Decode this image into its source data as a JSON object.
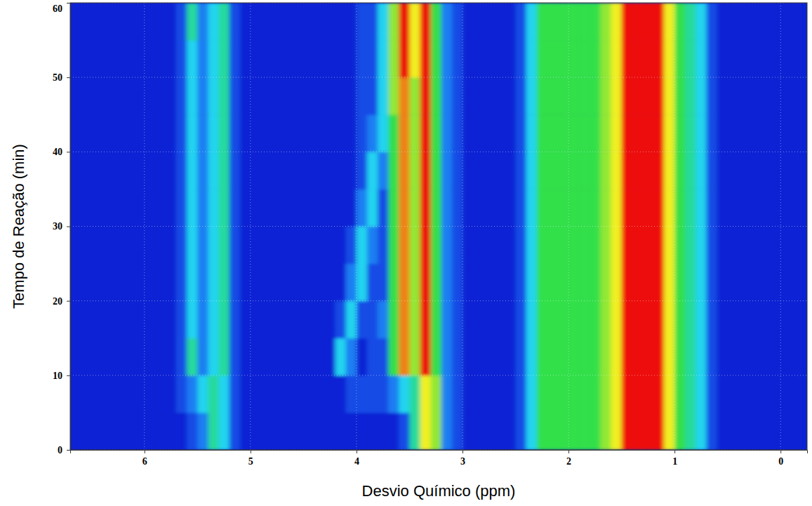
{
  "chart_data": {
    "type": "heatmap",
    "x_label": "Desvio Químico (ppm)",
    "y_label": "Tempo de Reação (min)",
    "xlim": [
      6.7,
      -0.25
    ],
    "ylim": [
      0,
      60
    ],
    "xticks": [
      6,
      5,
      4,
      3,
      2,
      1,
      0
    ],
    "yticks": [
      0,
      10,
      20,
      30,
      40,
      50,
      60
    ],
    "grid": true,
    "x_edges": [
      6.7,
      6.6,
      6.5,
      6.4,
      6.3,
      6.2,
      6.1,
      6.0,
      5.9,
      5.8,
      5.7,
      5.6,
      5.5,
      5.4,
      5.3,
      5.2,
      5.1,
      5.0,
      4.9,
      4.8,
      4.7,
      4.6,
      4.5,
      4.4,
      4.3,
      4.2,
      4.1,
      4.0,
      3.9,
      3.8,
      3.7,
      3.6,
      3.5,
      3.4,
      3.3,
      3.2,
      3.1,
      3.0,
      2.9,
      2.8,
      2.7,
      2.6,
      2.5,
      2.4,
      2.3,
      2.2,
      2.1,
      2.0,
      1.9,
      1.8,
      1.7,
      1.6,
      1.5,
      1.4,
      1.3,
      1.2,
      1.1,
      1.0,
      0.9,
      0.8,
      0.7,
      0.6,
      0.5,
      0.4,
      0.3,
      0.2,
      0.1,
      0.0,
      -0.1,
      -0.2
    ],
    "y_edges": [
      0,
      5,
      10,
      15,
      20,
      25,
      30,
      35,
      40,
      45,
      50,
      55,
      60
    ],
    "cells": [
      [
        0,
        0,
        0,
        0,
        0,
        0,
        0,
        0,
        0,
        0,
        0,
        1,
        2,
        4,
        3,
        1,
        0,
        0,
        0,
        0,
        0,
        0,
        0,
        0,
        0,
        0,
        0,
        0,
        0,
        0,
        0,
        1,
        4,
        7,
        6,
        2,
        1,
        0,
        0,
        0,
        0,
        0,
        1,
        3,
        5,
        5,
        5,
        5,
        5,
        5,
        6,
        7,
        9,
        9,
        9,
        9,
        7,
        5,
        4,
        3,
        1,
        0,
        0,
        0,
        0,
        0,
        0,
        0,
        0
      ],
      [
        0,
        0,
        0,
        0,
        0,
        0,
        0,
        0,
        0,
        0,
        1,
        2,
        3,
        4,
        3,
        1,
        0,
        0,
        0,
        0,
        0,
        0,
        0,
        0,
        0,
        0,
        1,
        1,
        1,
        1,
        2,
        3,
        4,
        7,
        6,
        2,
        1,
        0,
        0,
        0,
        0,
        0,
        1,
        3,
        5,
        5,
        5,
        5,
        5,
        5,
        6,
        7,
        9,
        9,
        9,
        9,
        7,
        5,
        4,
        3,
        1,
        0,
        0,
        0,
        0,
        0,
        0,
        0,
        0
      ],
      [
        0,
        0,
        0,
        0,
        0,
        0,
        0,
        0,
        0,
        0,
        1,
        4,
        2,
        3,
        4,
        1,
        0,
        0,
        0,
        0,
        0,
        0,
        0,
        0,
        0,
        3,
        2,
        0,
        1,
        1,
        5,
        8,
        6,
        9,
        5,
        2,
        1,
        0,
        0,
        0,
        0,
        0,
        1,
        3,
        5,
        5,
        5,
        5,
        5,
        5,
        6,
        7,
        9,
        9,
        9,
        9,
        7,
        5,
        4,
        3,
        1,
        0,
        0,
        0,
        0,
        0,
        0,
        0,
        0
      ],
      [
        0,
        0,
        0,
        0,
        0,
        0,
        0,
        0,
        0,
        0,
        1,
        3,
        2,
        3,
        4,
        1,
        0,
        0,
        0,
        0,
        0,
        0,
        0,
        0,
        0,
        1,
        3,
        1,
        1,
        2,
        5,
        8,
        6,
        9,
        5,
        2,
        1,
        0,
        0,
        0,
        0,
        0,
        1,
        3,
        5,
        5,
        5,
        5,
        5,
        5,
        6,
        7,
        9,
        9,
        9,
        9,
        7,
        5,
        4,
        3,
        1,
        0,
        0,
        0,
        0,
        0,
        0,
        0,
        0
      ],
      [
        0,
        0,
        0,
        0,
        0,
        0,
        0,
        0,
        0,
        0,
        1,
        3,
        2,
        3,
        4,
        1,
        0,
        0,
        0,
        0,
        0,
        0,
        0,
        0,
        0,
        0,
        2,
        3,
        1,
        1,
        5,
        8,
        6,
        9,
        5,
        2,
        1,
        0,
        0,
        0,
        0,
        0,
        1,
        3,
        5,
        5,
        5,
        5,
        5,
        5,
        6,
        7,
        9,
        9,
        9,
        9,
        7,
        5,
        4,
        3,
        1,
        0,
        0,
        0,
        0,
        0,
        0,
        0,
        0
      ],
      [
        0,
        0,
        0,
        0,
        0,
        0,
        0,
        0,
        0,
        0,
        1,
        3,
        2,
        3,
        4,
        1,
        0,
        0,
        0,
        0,
        0,
        0,
        0,
        0,
        0,
        0,
        1,
        3,
        2,
        1,
        5,
        8,
        6,
        9,
        5,
        2,
        1,
        0,
        0,
        0,
        0,
        0,
        1,
        3,
        5,
        5,
        5,
        5,
        5,
        5,
        6,
        7,
        9,
        9,
        9,
        9,
        7,
        5,
        4,
        3,
        1,
        0,
        0,
        0,
        0,
        0,
        0,
        0,
        0
      ],
      [
        0,
        0,
        0,
        0,
        0,
        0,
        0,
        0,
        0,
        0,
        1,
        3,
        2,
        3,
        4,
        1,
        0,
        0,
        0,
        0,
        0,
        0,
        0,
        0,
        0,
        0,
        0,
        2,
        3,
        1,
        5,
        8,
        6,
        9,
        5,
        2,
        1,
        0,
        0,
        0,
        0,
        0,
        1,
        3,
        5,
        5,
        5,
        5,
        5,
        5,
        6,
        7,
        9,
        9,
        9,
        9,
        7,
        5,
        4,
        3,
        1,
        0,
        0,
        0,
        0,
        0,
        0,
        0,
        0
      ],
      [
        0,
        0,
        0,
        0,
        0,
        0,
        0,
        0,
        0,
        0,
        1,
        3,
        2,
        3,
        4,
        1,
        0,
        0,
        0,
        0,
        0,
        0,
        0,
        0,
        0,
        0,
        0,
        1,
        3,
        2,
        5,
        8,
        6,
        9,
        5,
        2,
        1,
        0,
        0,
        0,
        0,
        0,
        1,
        3,
        5,
        5,
        5,
        5,
        5,
        5,
        6,
        7,
        9,
        9,
        9,
        9,
        7,
        5,
        4,
        3,
        1,
        0,
        0,
        0,
        0,
        0,
        0,
        0,
        0
      ],
      [
        0,
        0,
        0,
        0,
        0,
        0,
        0,
        0,
        0,
        0,
        1,
        3,
        2,
        3,
        4,
        1,
        0,
        0,
        0,
        0,
        0,
        0,
        0,
        0,
        0,
        0,
        0,
        1,
        2,
        3,
        5,
        8,
        6,
        9,
        5,
        2,
        1,
        0,
        0,
        0,
        0,
        0,
        1,
        3,
        5,
        5,
        5,
        5,
        5,
        5,
        6,
        7,
        9,
        9,
        9,
        9,
        7,
        5,
        4,
        3,
        1,
        0,
        0,
        0,
        0,
        0,
        0,
        0,
        0
      ],
      [
        0,
        0,
        0,
        0,
        0,
        0,
        0,
        0,
        0,
        0,
        1,
        3,
        2,
        3,
        4,
        1,
        0,
        0,
        0,
        0,
        0,
        0,
        0,
        0,
        0,
        0,
        0,
        1,
        1,
        3,
        6,
        8,
        6,
        9,
        5,
        2,
        1,
        0,
        0,
        0,
        0,
        0,
        1,
        3,
        5,
        5,
        5,
        5,
        5,
        5,
        6,
        7,
        9,
        9,
        9,
        9,
        7,
        5,
        4,
        3,
        1,
        0,
        0,
        0,
        0,
        0,
        0,
        0,
        0
      ],
      [
        0,
        0,
        0,
        0,
        0,
        0,
        0,
        0,
        0,
        0,
        1,
        3,
        2,
        3,
        4,
        1,
        0,
        0,
        0,
        0,
        0,
        0,
        0,
        0,
        0,
        0,
        0,
        1,
        1,
        3,
        6,
        9,
        7,
        9,
        5,
        2,
        1,
        0,
        0,
        0,
        0,
        0,
        1,
        3,
        5,
        5,
        5,
        5,
        5,
        5,
        6,
        7,
        9,
        9,
        9,
        9,
        7,
        5,
        4,
        3,
        1,
        0,
        0,
        0,
        0,
        0,
        0,
        0,
        0
      ],
      [
        0,
        0,
        0,
        0,
        0,
        0,
        0,
        0,
        0,
        0,
        1,
        4,
        2,
        3,
        4,
        1,
        0,
        0,
        0,
        0,
        0,
        0,
        0,
        0,
        0,
        0,
        0,
        1,
        1,
        3,
        6,
        9,
        7,
        9,
        5,
        2,
        1,
        0,
        0,
        0,
        0,
        0,
        1,
        3,
        5,
        5,
        5,
        5,
        5,
        5,
        6,
        7,
        9,
        9,
        9,
        9,
        7,
        5,
        4,
        3,
        1,
        0,
        0,
        0,
        0,
        0,
        0,
        0,
        0
      ]
    ]
  }
}
